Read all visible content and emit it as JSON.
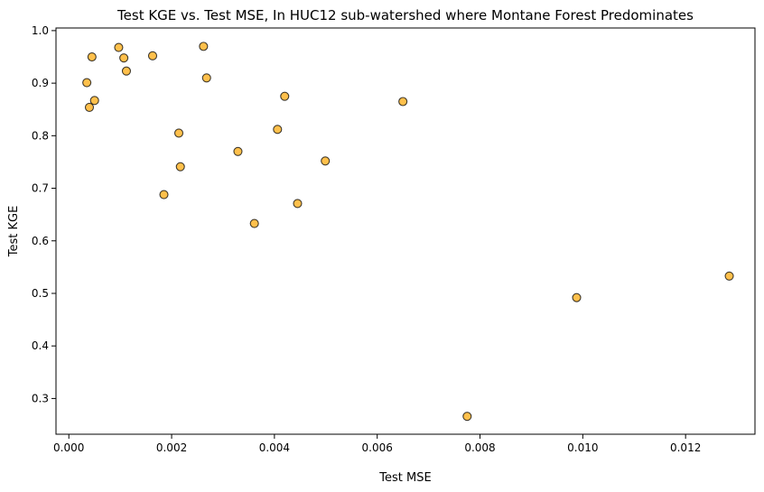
{
  "chart_data": {
    "type": "scatter",
    "title": "Test KGE vs. Test MSE, In HUC12 sub-watershed where Montane Forest Predominates",
    "xlabel": "Test MSE",
    "ylabel": "Test KGE",
    "xlim": [
      -0.00025,
      0.01335
    ],
    "ylim": [
      0.232,
      1.005
    ],
    "x_ticks": [
      0.0,
      0.002,
      0.004,
      0.006,
      0.008,
      0.01,
      0.012
    ],
    "x_tick_labels": [
      "0.000",
      "0.002",
      "0.004",
      "0.006",
      "0.008",
      "0.010",
      "0.012"
    ],
    "y_ticks": [
      0.3,
      0.4,
      0.5,
      0.6,
      0.7,
      0.8,
      0.9,
      1.0
    ],
    "y_tick_labels": [
      "0.3",
      "0.4",
      "0.5",
      "0.6",
      "0.7",
      "0.8",
      "0.9",
      "1.0"
    ],
    "grid": false,
    "marker_color": "#ffa500",
    "marker_alpha": 0.7,
    "marker_edge_color": "#000000",
    "points": [
      {
        "x": 0.00035,
        "y": 0.901
      },
      {
        "x": 0.0004,
        "y": 0.854
      },
      {
        "x": 0.00045,
        "y": 0.95
      },
      {
        "x": 0.0005,
        "y": 0.867
      },
      {
        "x": 0.00097,
        "y": 0.968
      },
      {
        "x": 0.00107,
        "y": 0.948
      },
      {
        "x": 0.00112,
        "y": 0.923
      },
      {
        "x": 0.00163,
        "y": 0.952
      },
      {
        "x": 0.00185,
        "y": 0.688
      },
      {
        "x": 0.00214,
        "y": 0.805
      },
      {
        "x": 0.00217,
        "y": 0.741
      },
      {
        "x": 0.00262,
        "y": 0.97
      },
      {
        "x": 0.00268,
        "y": 0.91
      },
      {
        "x": 0.00329,
        "y": 0.77
      },
      {
        "x": 0.00361,
        "y": 0.633
      },
      {
        "x": 0.00406,
        "y": 0.812
      },
      {
        "x": 0.0042,
        "y": 0.875
      },
      {
        "x": 0.00445,
        "y": 0.671
      },
      {
        "x": 0.00499,
        "y": 0.752
      },
      {
        "x": 0.0065,
        "y": 0.865
      },
      {
        "x": 0.00775,
        "y": 0.266
      },
      {
        "x": 0.00988,
        "y": 0.492
      },
      {
        "x": 0.01285,
        "y": 0.533
      }
    ]
  }
}
